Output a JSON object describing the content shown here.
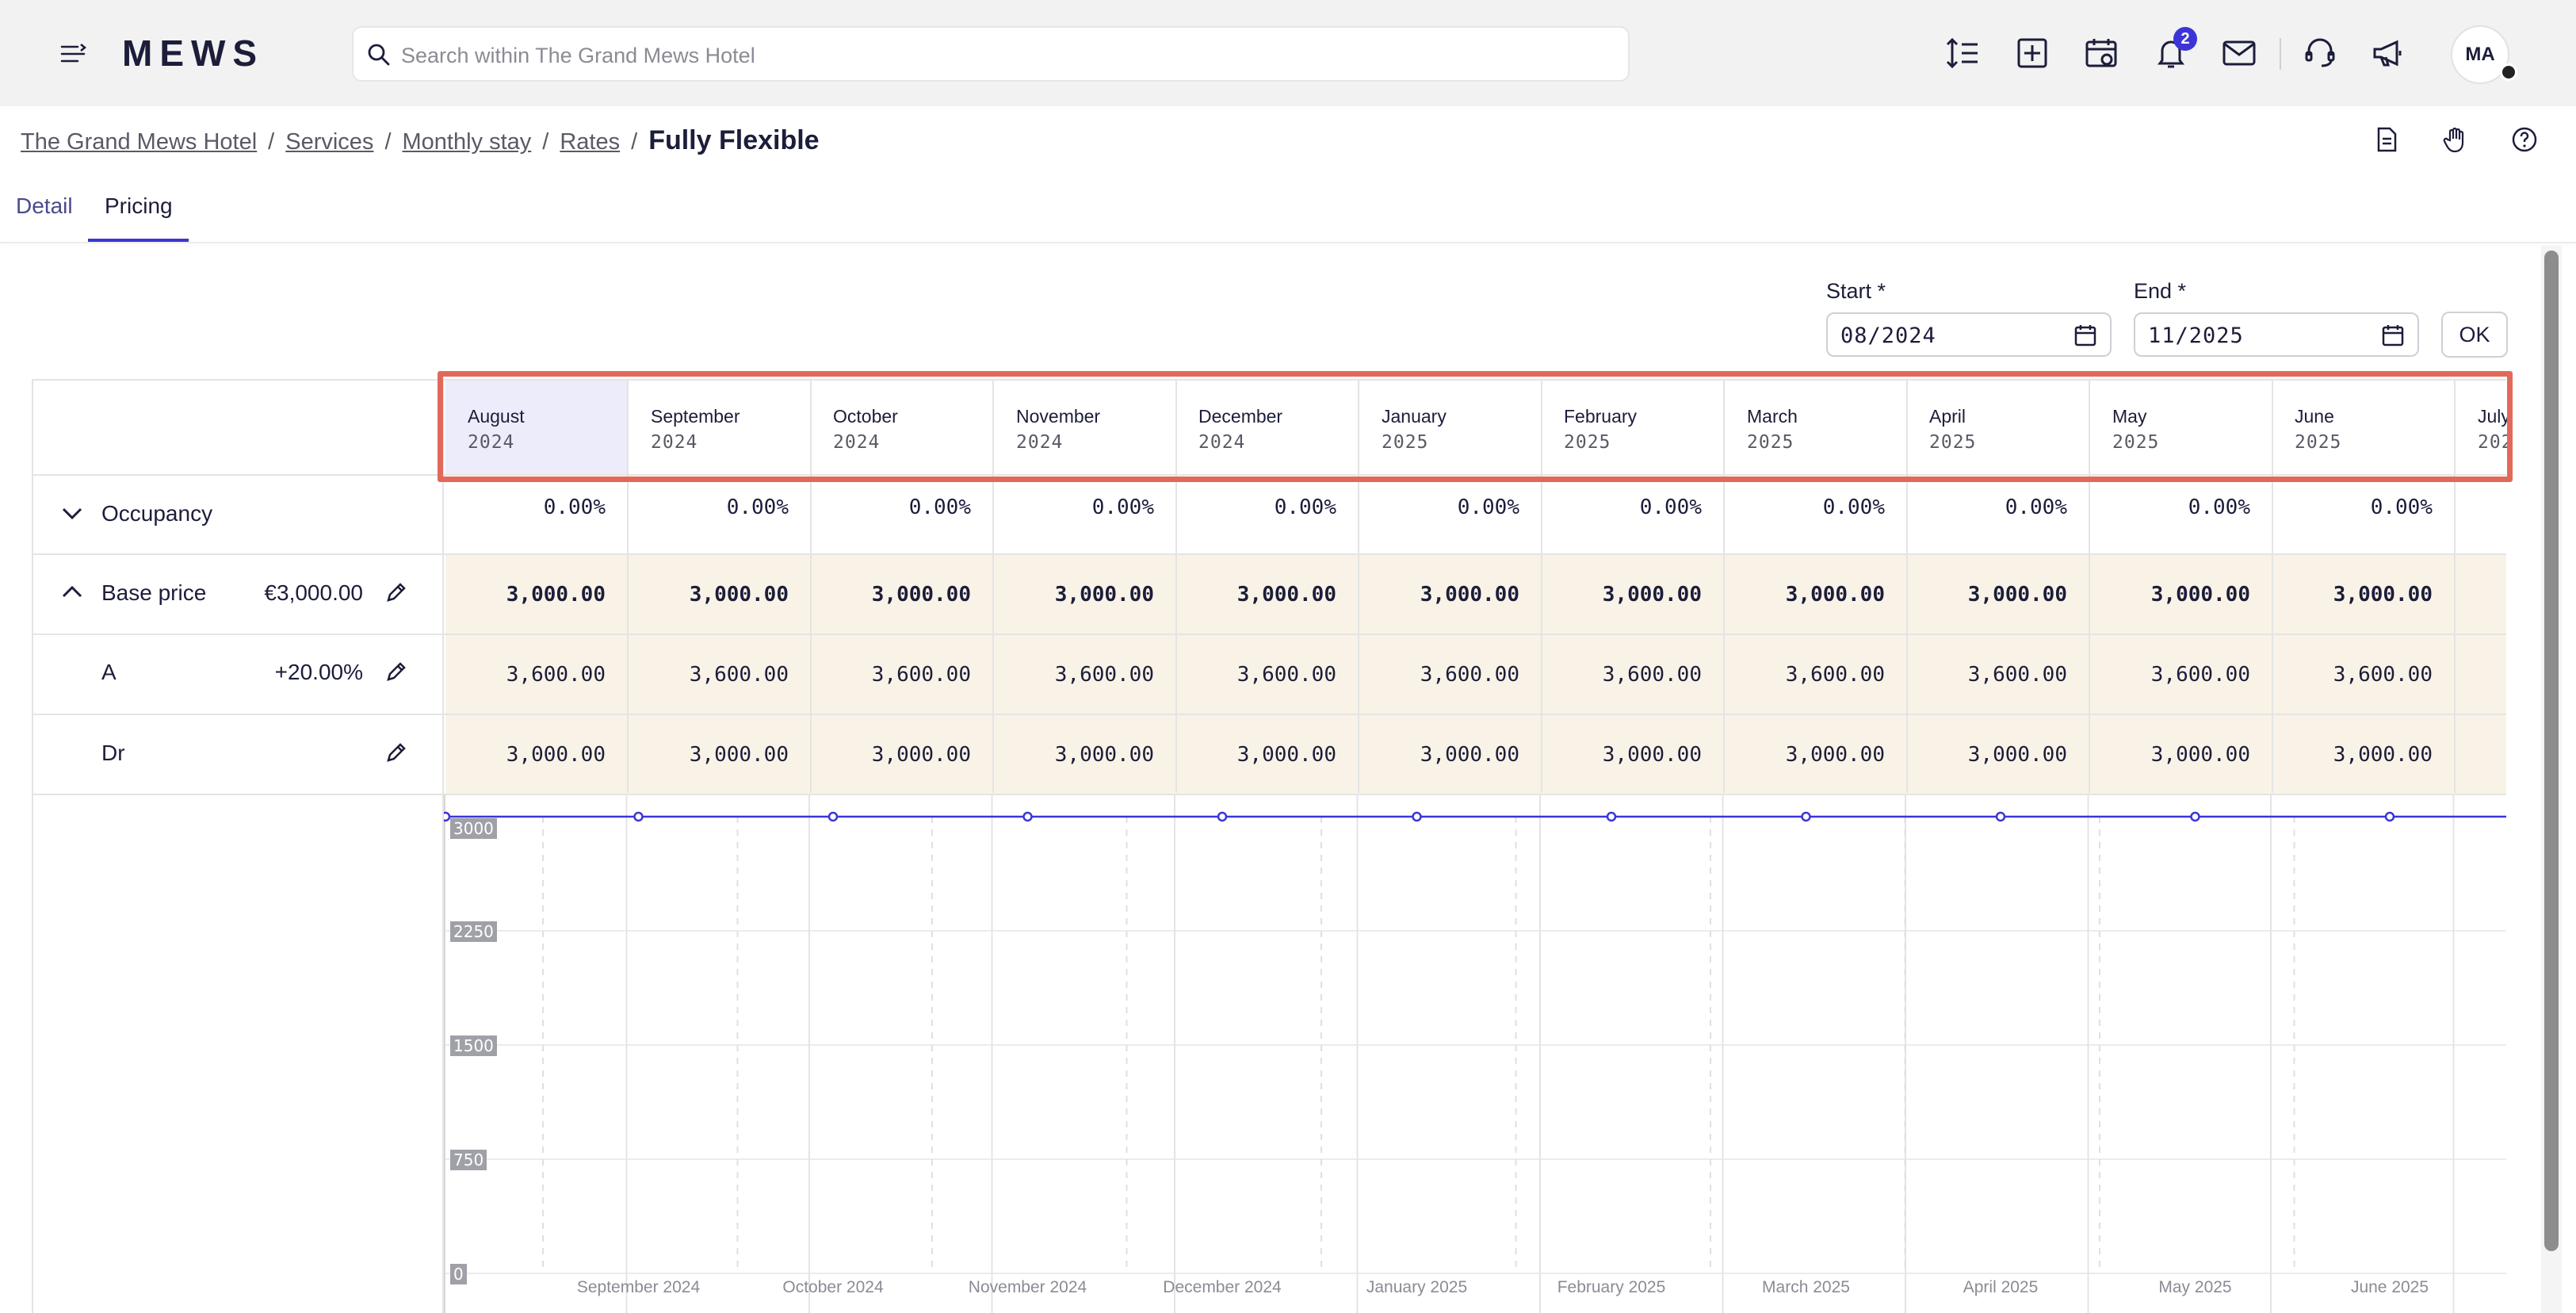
{
  "app": {
    "logo": "MEWS"
  },
  "search": {
    "placeholder": "Search within The Grand Mews Hotel"
  },
  "notifications": {
    "count": "2"
  },
  "user": {
    "initials": "MA"
  },
  "breadcrumb": {
    "items": [
      "The Grand Mews Hotel",
      "Services",
      "Monthly stay",
      "Rates"
    ],
    "current": "Fully Flexible"
  },
  "tabs": [
    {
      "label": "Detail",
      "active": false
    },
    {
      "label": "Pricing",
      "active": true
    }
  ],
  "date_range": {
    "start_label": "Start *",
    "start_value": "08/2024",
    "end_label": "End *",
    "end_value": "11/2025",
    "ok_label": "OK"
  },
  "months": [
    {
      "month": "August",
      "year": "2024"
    },
    {
      "month": "September",
      "year": "2024"
    },
    {
      "month": "October",
      "year": "2024"
    },
    {
      "month": "November",
      "year": "2024"
    },
    {
      "month": "December",
      "year": "2024"
    },
    {
      "month": "January",
      "year": "2025"
    },
    {
      "month": "February",
      "year": "2025"
    },
    {
      "month": "March",
      "year": "2025"
    },
    {
      "month": "April",
      "year": "2025"
    },
    {
      "month": "May",
      "year": "2025"
    },
    {
      "month": "June",
      "year": "2025"
    },
    {
      "month": "July",
      "year": "202"
    }
  ],
  "rows": {
    "occupancy": {
      "label": "Occupancy",
      "values": [
        "0.00%",
        "0.00%",
        "0.00%",
        "0.00%",
        "0.00%",
        "0.00%",
        "0.00%",
        "0.00%",
        "0.00%",
        "0.00%",
        "0.00%"
      ]
    },
    "base_price": {
      "label": "Base price",
      "amount": "€3,000.00",
      "values": [
        "3,000.00",
        "3,000.00",
        "3,000.00",
        "3,000.00",
        "3,000.00",
        "3,000.00",
        "3,000.00",
        "3,000.00",
        "3,000.00",
        "3,000.00",
        "3,000.00"
      ]
    },
    "a": {
      "label": "A",
      "amount": "+20.00%",
      "values": [
        "3,600.00",
        "3,600.00",
        "3,600.00",
        "3,600.00",
        "3,600.00",
        "3,600.00",
        "3,600.00",
        "3,600.00",
        "3,600.00",
        "3,600.00",
        "3,600.00"
      ]
    },
    "dr": {
      "label": "Dr",
      "values": [
        "3,000.00",
        "3,000.00",
        "3,000.00",
        "3,000.00",
        "3,000.00",
        "3,000.00",
        "3,000.00",
        "3,000.00",
        "3,000.00",
        "3,000.00",
        "3,000.00"
      ]
    }
  },
  "chart_data": {
    "type": "line",
    "x": [
      "August 2024",
      "September 2024",
      "October 2024",
      "November 2024",
      "December 2024",
      "January 2025",
      "February 2025",
      "March 2025",
      "April 2025",
      "May 2025",
      "June 2025"
    ],
    "series": [
      {
        "values": [
          3000,
          3000,
          3000,
          3000,
          3000,
          3000,
          3000,
          3000,
          3000,
          3000,
          3000
        ]
      }
    ],
    "y_ticks": [
      "3000",
      "2250",
      "1500",
      "750",
      "0"
    ],
    "x_tick_labels": [
      "September 2024",
      "October 2024",
      "November 2024",
      "December 2024",
      "January 2025",
      "February 2025",
      "March 2025",
      "April 2025",
      "May 2025",
      "June 2025"
    ],
    "ylim": [
      0,
      3000
    ],
    "line_color": "#3b35d8"
  },
  "colors": {
    "accent": "#3b35d8",
    "price_band": "#f9f3e7",
    "selected_month": "#ececfa",
    "highlight": "#e2695a"
  }
}
